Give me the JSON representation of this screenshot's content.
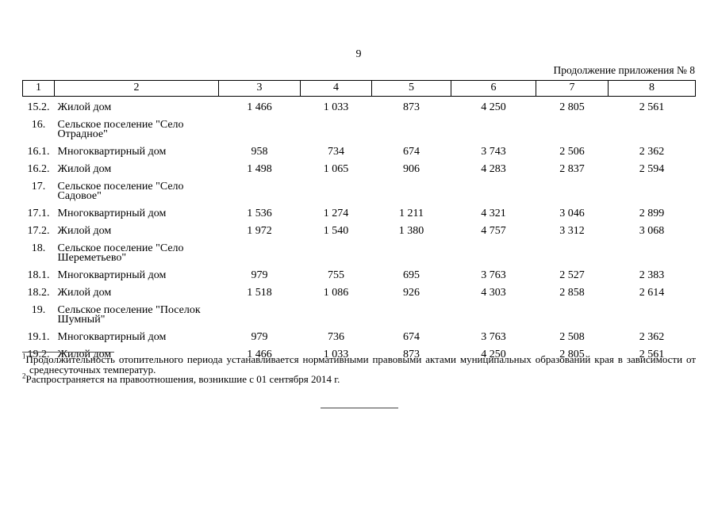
{
  "page": {
    "number": "9",
    "continuation": "Продолжение приложения № 8"
  },
  "table": {
    "header_cols": [
      "1",
      "2",
      "3",
      "4",
      "5",
      "6",
      "7",
      "8"
    ],
    "rows": [
      {
        "num": "15.2.",
        "label": "Жилой дом",
        "group": false,
        "values": [
          "1 466",
          "1 033",
          "873",
          "4 250",
          "2 805",
          "2 561"
        ]
      },
      {
        "num": "16.",
        "label": "Сельское поселение \"Село Отрадное\"",
        "group": true,
        "values": []
      },
      {
        "num": "16.1.",
        "label": "Многоквартирный дом",
        "group": false,
        "values": [
          "958",
          "734",
          "674",
          "3 743",
          "2 506",
          "2 362"
        ]
      },
      {
        "num": "16.2.",
        "label": "Жилой дом",
        "group": false,
        "values": [
          "1 498",
          "1 065",
          "906",
          "4 283",
          "2 837",
          "2 594"
        ]
      },
      {
        "num": "17.",
        "label": "Сельское поселение \"Село Садовое\"",
        "group": true,
        "values": []
      },
      {
        "num": "17.1.",
        "label": "Многоквартирный дом",
        "group": false,
        "values": [
          "1 536",
          "1 274",
          "1 211",
          "4 321",
          "3 046",
          "2 899"
        ]
      },
      {
        "num": "17.2.",
        "label": "Жилой дом",
        "group": false,
        "values": [
          "1 972",
          "1 540",
          "1 380",
          "4 757",
          "3 312",
          "3 068"
        ]
      },
      {
        "num": "18.",
        "label": "Сельское поселение \"Село Шереметьево\"",
        "group": true,
        "values": []
      },
      {
        "num": "18.1.",
        "label": "Многоквартирный дом",
        "group": false,
        "values": [
          "979",
          "755",
          "695",
          "3 763",
          "2 527",
          "2 383"
        ]
      },
      {
        "num": "18.2.",
        "label": "Жилой дом",
        "group": false,
        "values": [
          "1 518",
          "1 086",
          "926",
          "4 303",
          "2 858",
          "2 614"
        ]
      },
      {
        "num": "19.",
        "label": "Сельское поселение \"Поселок Шумный\"",
        "group": true,
        "values": []
      },
      {
        "num": "19.1.",
        "label": "Многоквартирный дом",
        "group": false,
        "values": [
          "979",
          "736",
          "674",
          "3 763",
          "2 508",
          "2 362"
        ]
      },
      {
        "num": "19.2.",
        "label": "Жилой дом",
        "group": false,
        "values": [
          "1 466",
          "1 033",
          "873",
          "4 250",
          "2 805",
          "2 561"
        ]
      }
    ]
  },
  "footnotes": [
    {
      "marker": "1",
      "text": "Продолжительность отопительного периода устанавливается нормативными правовыми актами муниципальных образований края в зависимости от среднесуточных температур."
    },
    {
      "marker": "2",
      "text": "Распространяется на правоотношения, возникшие с 01 сентября 2014 г."
    }
  ]
}
